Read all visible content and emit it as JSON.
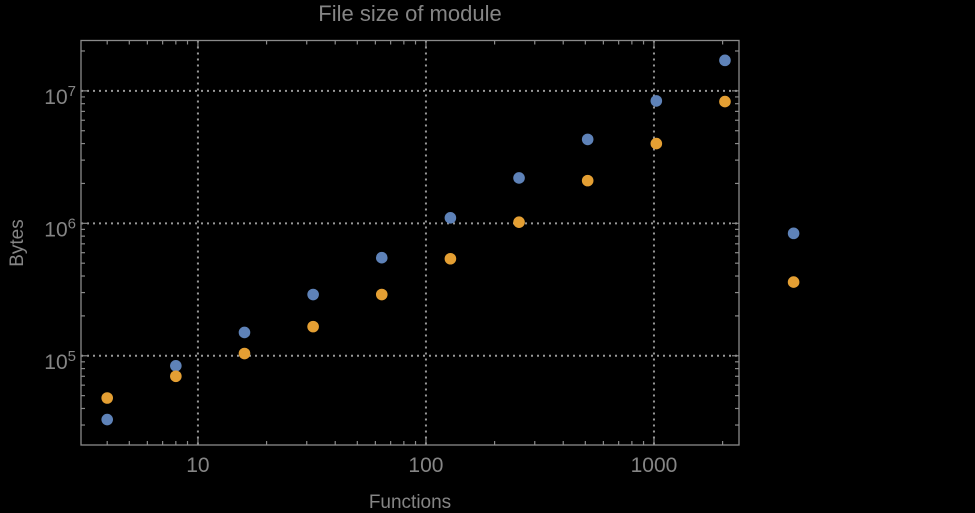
{
  "window": {
    "background": "#000000"
  },
  "colors": {
    "background": "#000000",
    "frame": "#8a8a8a",
    "grid": "#989898",
    "text": "#858585",
    "series_blue": "#5e82b8",
    "series_orange": "#e49f33"
  },
  "chart_data": {
    "type": "scatter",
    "title": "File size of module",
    "xlabel": "Functions",
    "ylabel": "Bytes",
    "xscale": "log",
    "yscale": "log",
    "xlim": [
      3.07,
      2360
    ],
    "ylim": [
      21200,
      24000000
    ],
    "grid": "dotted lines at decade values, both axes",
    "legend_position": "none",
    "x_ticks": {
      "major_values": [
        10,
        100,
        1000
      ],
      "major_labels": [
        "10",
        "100",
        "1000"
      ]
    },
    "y_ticks": {
      "major_values": [
        100000,
        1000000,
        10000000
      ],
      "major_labels": [
        {
          "base": "10",
          "exp": "5"
        },
        {
          "base": "10",
          "exp": "6"
        },
        {
          "base": "10",
          "exp": "7"
        }
      ]
    },
    "series": [
      {
        "name": "blue-points",
        "color": "#5e82b8",
        "points": [
          [
            4,
            33000
          ],
          [
            8,
            84000
          ],
          [
            16,
            150000
          ],
          [
            32,
            290000
          ],
          [
            64,
            550000
          ],
          [
            128,
            1100000
          ],
          [
            256,
            2200000
          ],
          [
            512,
            4300000
          ],
          [
            1024,
            8400000
          ],
          [
            2048,
            17000000
          ],
          [
            4096,
            840000
          ]
        ]
      },
      {
        "name": "orange-points",
        "color": "#e49f33",
        "points": [
          [
            4,
            48000
          ],
          [
            8,
            70000
          ],
          [
            16,
            104000
          ],
          [
            32,
            166000
          ],
          [
            64,
            290000
          ],
          [
            128,
            540000
          ],
          [
            256,
            1020000
          ],
          [
            512,
            2100000
          ],
          [
            1024,
            4000000
          ],
          [
            2048,
            8300000
          ],
          [
            4096,
            360000
          ]
        ]
      }
    ]
  }
}
